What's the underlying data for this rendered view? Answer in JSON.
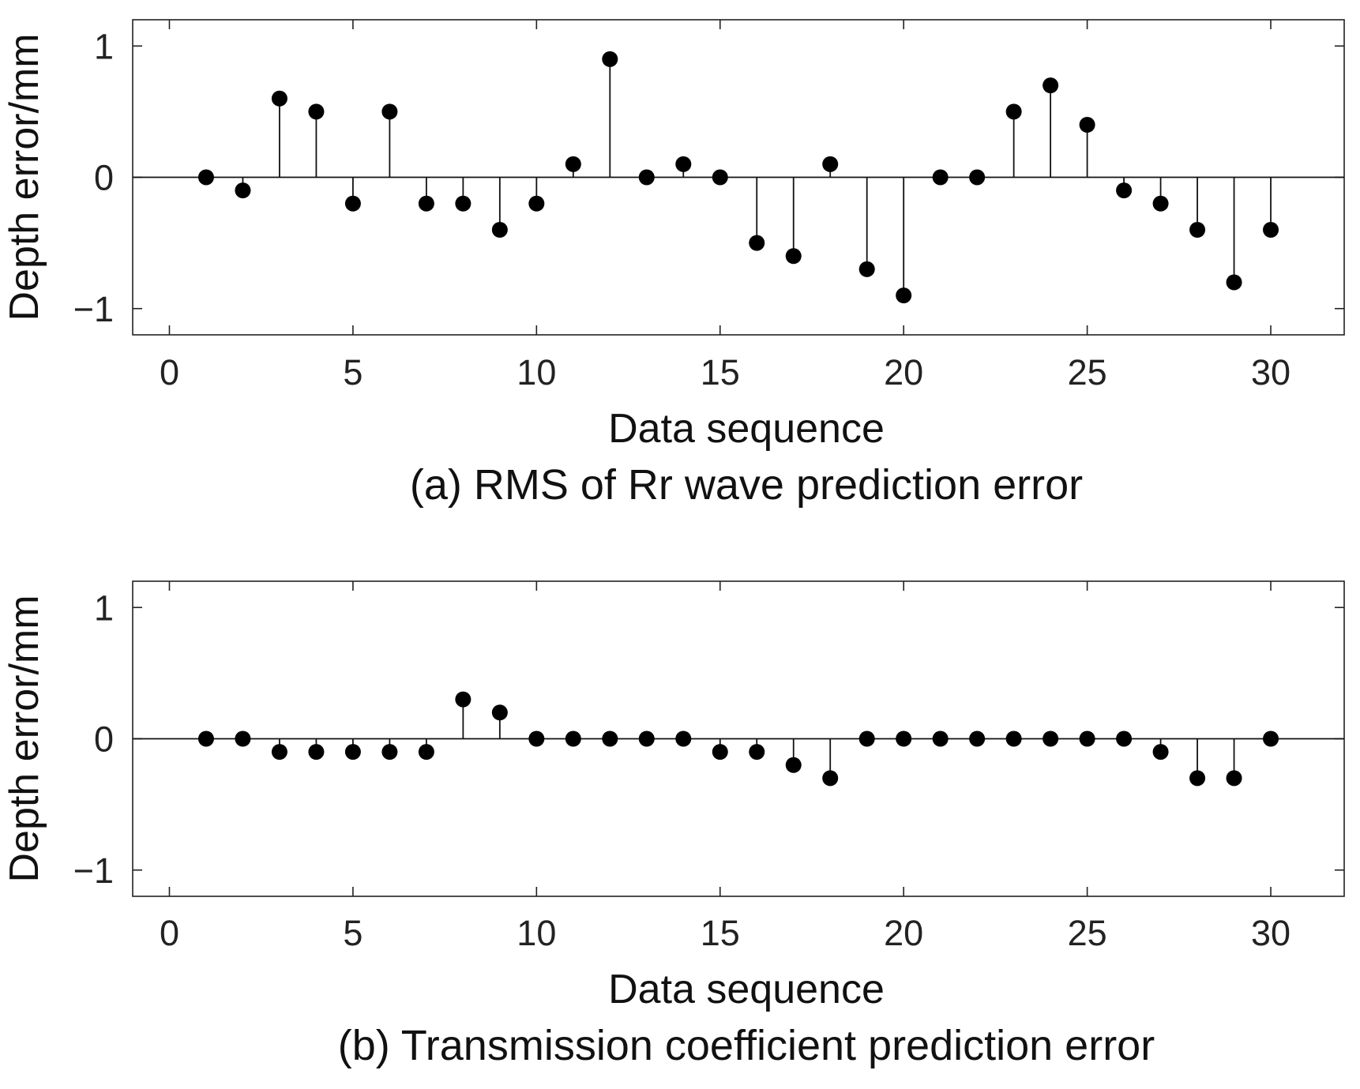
{
  "chart_data": [
    {
      "type": "stem",
      "id": "a",
      "caption": "(a) RMS of Rr wave prediction error",
      "xlabel": "Data sequence",
      "ylabel": "Depth error/mm",
      "xlim": [
        -1,
        32
      ],
      "ylim": [
        -1.2,
        1.2
      ],
      "xticks": [
        0,
        5,
        10,
        15,
        20,
        25,
        30
      ],
      "yticks": [
        1,
        0,
        -1
      ],
      "ytick_labels": [
        "1",
        "0",
        "−1"
      ],
      "baseline": 0,
      "x": [
        1,
        2,
        3,
        4,
        5,
        6,
        7,
        8,
        9,
        10,
        11,
        12,
        13,
        14,
        15,
        16,
        17,
        18,
        19,
        20,
        21,
        22,
        23,
        24,
        25,
        26,
        27,
        28,
        29,
        30
      ],
      "values": [
        0,
        -0.1,
        0.6,
        0.5,
        -0.2,
        0.5,
        -0.2,
        -0.2,
        -0.4,
        -0.2,
        0.1,
        0.9,
        0,
        0.1,
        0,
        -0.5,
        -0.6,
        0.1,
        -0.7,
        -0.9,
        0,
        0,
        0.5,
        0.7,
        0.4,
        -0.1,
        -0.2,
        -0.4,
        -0.8,
        -0.4
      ]
    },
    {
      "type": "stem",
      "id": "b",
      "caption": "(b) Transmission coefficient prediction error",
      "xlabel": "Data sequence",
      "ylabel": "Depth error/mm",
      "xlim": [
        -1,
        32
      ],
      "ylim": [
        -1.2,
        1.2
      ],
      "xticks": [
        0,
        5,
        10,
        15,
        20,
        25,
        30
      ],
      "yticks": [
        1,
        0,
        -1
      ],
      "ytick_labels": [
        "1",
        "0",
        "−1"
      ],
      "baseline": 0,
      "x": [
        1,
        2,
        3,
        4,
        5,
        6,
        7,
        8,
        9,
        10,
        11,
        12,
        13,
        14,
        15,
        16,
        17,
        18,
        19,
        20,
        21,
        22,
        23,
        24,
        25,
        26,
        27,
        28,
        29,
        30
      ],
      "values": [
        0,
        0,
        -0.1,
        -0.1,
        -0.1,
        -0.1,
        -0.1,
        0.3,
        0.2,
        0,
        0,
        0,
        0,
        0,
        -0.1,
        -0.1,
        -0.2,
        -0.3,
        0,
        0,
        0,
        0,
        0,
        0,
        0,
        0,
        -0.1,
        -0.3,
        -0.3,
        0
      ]
    }
  ]
}
